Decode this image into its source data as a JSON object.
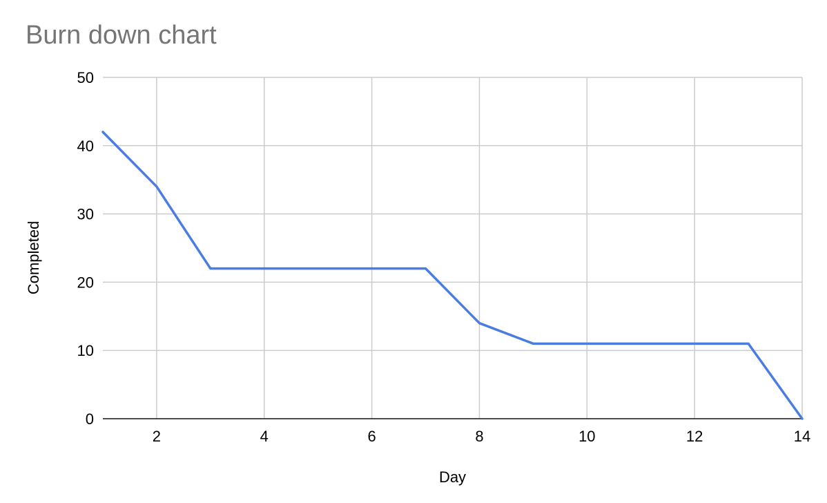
{
  "chart_data": {
    "type": "line",
    "title": "Burn down chart",
    "xlabel": "Day",
    "ylabel": "Completed",
    "xlim": [
      1,
      14
    ],
    "ylim": [
      0,
      50
    ],
    "x_ticks": [
      2,
      4,
      6,
      8,
      10,
      12,
      14
    ],
    "y_ticks": [
      0,
      10,
      20,
      30,
      40,
      50
    ],
    "grid": true,
    "legend": "none",
    "line_color": "#4a7de2",
    "grid_color": "#cccccc",
    "axis_color": "#333333",
    "series": [
      {
        "x": [
          1,
          2,
          3,
          4,
          5,
          6,
          7,
          8,
          9,
          10,
          11,
          12,
          13,
          14
        ],
        "values": [
          42,
          34,
          22,
          22,
          22,
          22,
          22,
          14,
          11,
          11,
          11,
          11,
          11,
          0
        ]
      }
    ]
  }
}
